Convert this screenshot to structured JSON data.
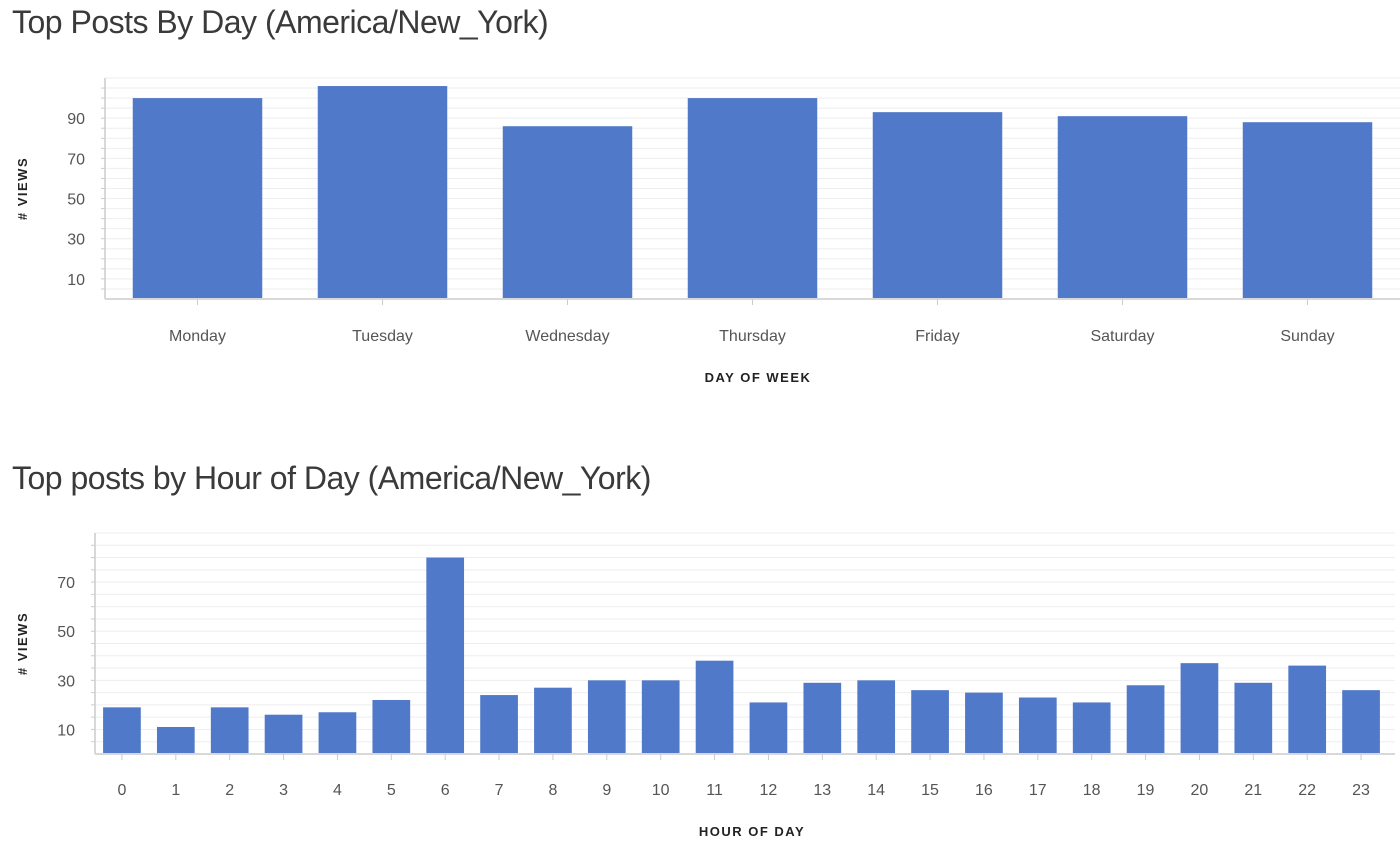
{
  "chart_data": [
    {
      "type": "bar",
      "title": "Top Posts By Day (America/New_York)",
      "xlabel": "DAY OF WEEK",
      "ylabel": "# VIEWS",
      "categories": [
        "Monday",
        "Tuesday",
        "Wednesday",
        "Thursday",
        "Friday",
        "Saturday",
        "Sunday"
      ],
      "values": [
        100,
        106,
        86,
        100,
        93,
        91,
        88
      ],
      "yticks": [
        10,
        30,
        50,
        70,
        90
      ],
      "ylim": [
        0,
        110
      ],
      "grid": true,
      "bar_color": "#5179c9"
    },
    {
      "type": "bar",
      "title": "Top posts by Hour of Day (America/New_York)",
      "xlabel": "HOUR OF DAY",
      "ylabel": "# VIEWS",
      "categories": [
        "0",
        "1",
        "2",
        "3",
        "4",
        "5",
        "6",
        "7",
        "8",
        "9",
        "10",
        "11",
        "12",
        "13",
        "14",
        "15",
        "16",
        "17",
        "18",
        "19",
        "20",
        "21",
        "22",
        "23"
      ],
      "values": [
        19,
        11,
        19,
        16,
        17,
        22,
        80,
        24,
        27,
        30,
        30,
        38,
        21,
        29,
        30,
        26,
        25,
        23,
        21,
        28,
        37,
        29,
        36,
        26
      ],
      "yticks": [
        10,
        30,
        50,
        70
      ],
      "ylim": [
        0,
        90
      ],
      "grid": true,
      "bar_color": "#5179c9"
    }
  ]
}
